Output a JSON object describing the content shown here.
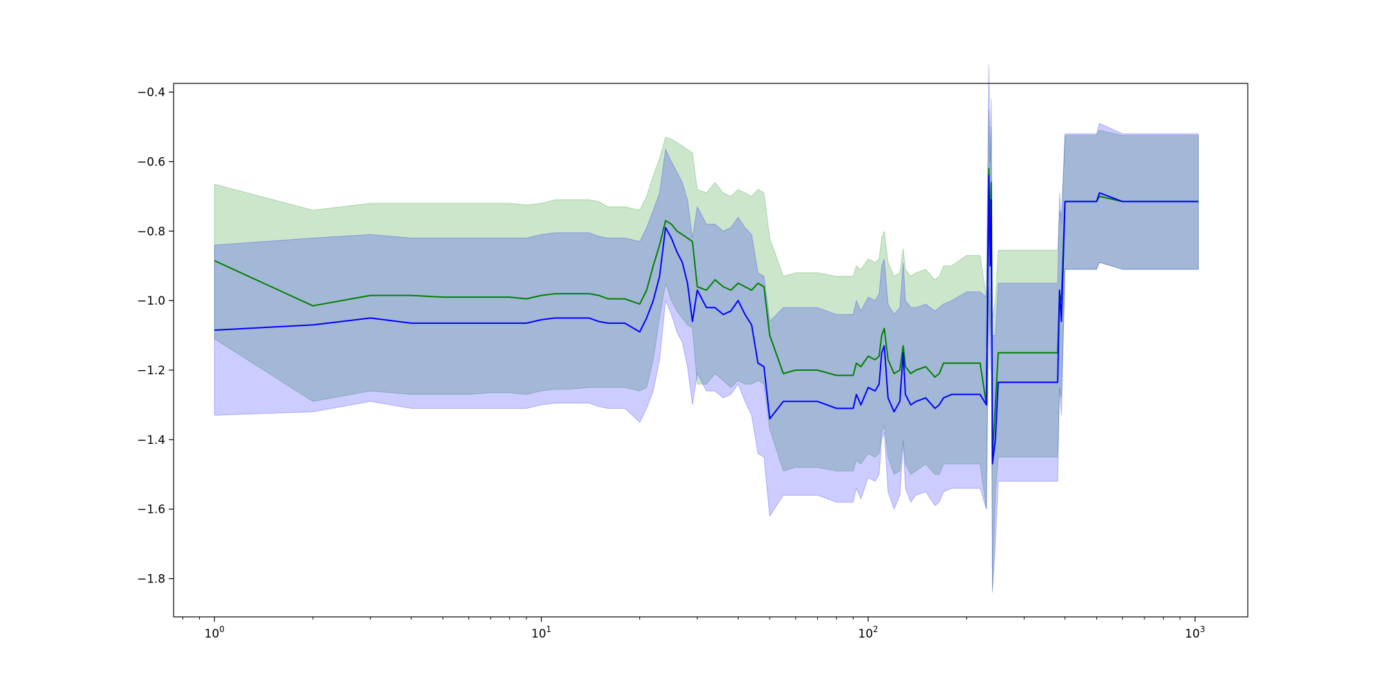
{
  "chart_data": {
    "type": "line",
    "title": "",
    "xlabel": "",
    "ylabel": "",
    "xscale": "log",
    "xlim": [
      0.75,
      1450
    ],
    "ylim": [
      -1.91,
      -0.375
    ],
    "grid": false,
    "legend": "none",
    "x_ticks": [
      {
        "value": 1,
        "base": "10",
        "exp": "0"
      },
      {
        "value": 10,
        "base": "10",
        "exp": "1"
      },
      {
        "value": 100,
        "base": "10",
        "exp": "2"
      },
      {
        "value": 1000,
        "base": "10",
        "exp": "3"
      }
    ],
    "y_ticks": [
      {
        "value": -0.4,
        "label": "−0.4"
      },
      {
        "value": -0.6,
        "label": "−0.6"
      },
      {
        "value": -0.8,
        "label": "−0.8"
      },
      {
        "value": -1.0,
        "label": "−1.0"
      },
      {
        "value": -1.2,
        "label": "−1.2"
      },
      {
        "value": -1.4,
        "label": "−1.4"
      },
      {
        "value": -1.6,
        "label": "−1.6"
      },
      {
        "value": -1.8,
        "label": "−1.8"
      }
    ],
    "series": [
      {
        "color": "#008000",
        "band_color": "#008000",
        "band_opacity": 0.2,
        "x": [
          1,
          2,
          3,
          4,
          5,
          6,
          7,
          8,
          9,
          10,
          11,
          12,
          14,
          15,
          16,
          18,
          20,
          21,
          22,
          23,
          24,
          25,
          26,
          27,
          28,
          29,
          30,
          32,
          34,
          36,
          38,
          40,
          42,
          44,
          46,
          48,
          50,
          55,
          60,
          70,
          80,
          90,
          92,
          95,
          100,
          105,
          108,
          110,
          112,
          115,
          120,
          125,
          128,
          130,
          135,
          140,
          150,
          160,
          165,
          170,
          180,
          200,
          220,
          230,
          234,
          236,
          238,
          240,
          245,
          250,
          300,
          380,
          385,
          390,
          400,
          450,
          500,
          510,
          600,
          800,
          1000,
          1024
        ],
        "y": [
          -0.885,
          -1.015,
          -0.985,
          -0.985,
          -0.99,
          -0.99,
          -0.99,
          -0.99,
          -0.995,
          -0.985,
          -0.98,
          -0.98,
          -0.98,
          -0.985,
          -0.995,
          -0.995,
          -1.01,
          -0.97,
          -0.9,
          -0.84,
          -0.77,
          -0.78,
          -0.8,
          -0.81,
          -0.82,
          -0.83,
          -0.96,
          -0.97,
          -0.94,
          -0.96,
          -0.97,
          -0.95,
          -0.96,
          -0.97,
          -0.95,
          -0.96,
          -1.1,
          -1.21,
          -1.2,
          -1.2,
          -1.215,
          -1.215,
          -1.18,
          -1.19,
          -1.16,
          -1.17,
          -1.16,
          -1.1,
          -1.08,
          -1.17,
          -1.21,
          -1.2,
          -1.13,
          -1.19,
          -1.21,
          -1.2,
          -1.19,
          -1.22,
          -1.21,
          -1.18,
          -1.18,
          -1.18,
          -1.18,
          -1.3,
          -0.62,
          -0.8,
          -0.66,
          -1.45,
          -1.3,
          -1.15,
          -1.15,
          -1.15,
          -0.98,
          -1.0,
          -0.715,
          -0.715,
          -0.715,
          -0.7,
          -0.715,
          -0.715,
          -0.715,
          -0.715
        ],
        "lower": [
          -1.11,
          -1.29,
          -1.26,
          -1.27,
          -1.27,
          -1.27,
          -1.265,
          -1.265,
          -1.27,
          -1.26,
          -1.255,
          -1.255,
          -1.25,
          -1.25,
          -1.25,
          -1.25,
          -1.26,
          -1.25,
          -1.17,
          -1.05,
          -0.95,
          -1.0,
          -1.03,
          -1.05,
          -1.07,
          -1.08,
          -1.24,
          -1.24,
          -1.21,
          -1.23,
          -1.25,
          -1.23,
          -1.24,
          -1.24,
          -1.23,
          -1.24,
          -1.37,
          -1.49,
          -1.48,
          -1.48,
          -1.49,
          -1.49,
          -1.46,
          -1.47,
          -1.44,
          -1.45,
          -1.44,
          -1.38,
          -1.36,
          -1.45,
          -1.5,
          -1.49,
          -1.4,
          -1.47,
          -1.5,
          -1.49,
          -1.47,
          -1.5,
          -1.5,
          -1.47,
          -1.47,
          -1.47,
          -1.47,
          -1.6,
          -0.98,
          -1.1,
          -0.95,
          -1.83,
          -1.55,
          -1.45,
          -1.45,
          -1.45,
          -1.25,
          -1.28,
          -0.91,
          -0.91,
          -0.91,
          -0.89,
          -0.91,
          -0.91,
          -0.91,
          -0.91
        ],
        "upper": [
          -0.665,
          -0.74,
          -0.72,
          -0.72,
          -0.72,
          -0.72,
          -0.72,
          -0.72,
          -0.725,
          -0.72,
          -0.71,
          -0.71,
          -0.71,
          -0.715,
          -0.73,
          -0.73,
          -0.74,
          -0.7,
          -0.64,
          -0.59,
          -0.53,
          -0.535,
          -0.545,
          -0.555,
          -0.565,
          -0.575,
          -0.68,
          -0.69,
          -0.66,
          -0.69,
          -0.7,
          -0.68,
          -0.69,
          -0.7,
          -0.68,
          -0.69,
          -0.82,
          -0.93,
          -0.92,
          -0.92,
          -0.93,
          -0.93,
          -0.9,
          -0.91,
          -0.88,
          -0.89,
          -0.88,
          -0.82,
          -0.8,
          -0.89,
          -0.93,
          -0.92,
          -0.85,
          -0.91,
          -0.93,
          -0.92,
          -0.91,
          -0.94,
          -0.93,
          -0.9,
          -0.9,
          -0.87,
          -0.87,
          -0.99,
          -0.45,
          -0.62,
          -0.5,
          -1.05,
          -1.0,
          -0.855,
          -0.855,
          -0.855,
          -0.74,
          -0.76,
          -0.525,
          -0.525,
          -0.525,
          -0.51,
          -0.525,
          -0.525,
          -0.525,
          -0.525
        ]
      },
      {
        "color": "#0000ff",
        "band_color": "#0000ff",
        "band_opacity": 0.2,
        "x": [
          1,
          2,
          3,
          4,
          5,
          6,
          7,
          8,
          9,
          10,
          11,
          12,
          14,
          15,
          16,
          18,
          20,
          21,
          22,
          23,
          24,
          25,
          26,
          27,
          28,
          29,
          30,
          32,
          34,
          36,
          38,
          40,
          42,
          44,
          46,
          48,
          50,
          55,
          60,
          70,
          80,
          90,
          92,
          95,
          100,
          105,
          108,
          110,
          112,
          115,
          120,
          125,
          128,
          130,
          135,
          140,
          150,
          160,
          165,
          170,
          180,
          200,
          220,
          230,
          234,
          236,
          238,
          240,
          245,
          250,
          300,
          380,
          385,
          390,
          400,
          450,
          500,
          510,
          600,
          800,
          1000,
          1024
        ],
        "y": [
          -1.085,
          -1.07,
          -1.05,
          -1.065,
          -1.065,
          -1.065,
          -1.065,
          -1.065,
          -1.065,
          -1.055,
          -1.05,
          -1.05,
          -1.05,
          -1.06,
          -1.065,
          -1.065,
          -1.09,
          -1.05,
          -1.0,
          -0.93,
          -0.79,
          -0.82,
          -0.86,
          -0.89,
          -0.95,
          -1.06,
          -0.97,
          -1.02,
          -1.02,
          -1.04,
          -1.03,
          -1.0,
          -1.04,
          -1.07,
          -1.18,
          -1.19,
          -1.34,
          -1.29,
          -1.29,
          -1.29,
          -1.31,
          -1.31,
          -1.27,
          -1.3,
          -1.25,
          -1.26,
          -1.24,
          -1.15,
          -1.13,
          -1.28,
          -1.32,
          -1.29,
          -1.15,
          -1.27,
          -1.3,
          -1.29,
          -1.28,
          -1.31,
          -1.3,
          -1.28,
          -1.27,
          -1.27,
          -1.27,
          -1.3,
          -0.64,
          -0.9,
          -0.71,
          -1.47,
          -1.4,
          -1.235,
          -1.235,
          -1.235,
          -0.97,
          -1.06,
          -0.715,
          -0.715,
          -0.715,
          -0.69,
          -0.715,
          -0.715,
          -0.715,
          -0.715
        ],
        "lower": [
          -1.33,
          -1.32,
          -1.29,
          -1.31,
          -1.31,
          -1.31,
          -1.31,
          -1.31,
          -1.31,
          -1.3,
          -1.295,
          -1.295,
          -1.295,
          -1.305,
          -1.31,
          -1.31,
          -1.35,
          -1.31,
          -1.26,
          -1.17,
          -1.0,
          -1.04,
          -1.09,
          -1.12,
          -1.19,
          -1.3,
          -1.21,
          -1.26,
          -1.26,
          -1.28,
          -1.27,
          -1.24,
          -1.29,
          -1.33,
          -1.44,
          -1.45,
          -1.62,
          -1.56,
          -1.56,
          -1.56,
          -1.58,
          -1.58,
          -1.54,
          -1.57,
          -1.51,
          -1.52,
          -1.5,
          -1.4,
          -1.38,
          -1.55,
          -1.6,
          -1.56,
          -1.41,
          -1.54,
          -1.58,
          -1.56,
          -1.55,
          -1.59,
          -1.58,
          -1.55,
          -1.54,
          -1.54,
          -1.54,
          -1.6,
          -0.96,
          -1.2,
          -1.0,
          -1.84,
          -1.7,
          -1.52,
          -1.52,
          -1.52,
          -1.25,
          -1.33,
          -0.91,
          -0.91,
          -0.91,
          -0.89,
          -0.91,
          -0.91,
          -0.91,
          -0.91
        ],
        "upper": [
          -0.84,
          -0.82,
          -0.81,
          -0.82,
          -0.82,
          -0.82,
          -0.82,
          -0.82,
          -0.82,
          -0.81,
          -0.805,
          -0.805,
          -0.805,
          -0.815,
          -0.82,
          -0.82,
          -0.83,
          -0.79,
          -0.74,
          -0.69,
          -0.565,
          -0.6,
          -0.63,
          -0.66,
          -0.71,
          -0.82,
          -0.73,
          -0.78,
          -0.78,
          -0.8,
          -0.79,
          -0.76,
          -0.79,
          -0.81,
          -0.92,
          -0.93,
          -1.06,
          -1.02,
          -1.02,
          -1.02,
          -1.04,
          -1.04,
          -1.0,
          -1.03,
          -0.99,
          -1.0,
          -0.98,
          -0.9,
          -0.88,
          -1.01,
          -1.04,
          -1.02,
          -0.89,
          -1.0,
          -1.02,
          -1.02,
          -1.01,
          -1.03,
          -1.02,
          -1.01,
          -1.0,
          -0.975,
          -0.975,
          -0.99,
          -0.32,
          -0.6,
          -0.42,
          -1.1,
          -1.1,
          -0.95,
          -0.95,
          -0.95,
          -0.69,
          -0.78,
          -0.52,
          -0.52,
          -0.52,
          -0.49,
          -0.52,
          -0.52,
          -0.52,
          -0.52
        ]
      }
    ]
  }
}
